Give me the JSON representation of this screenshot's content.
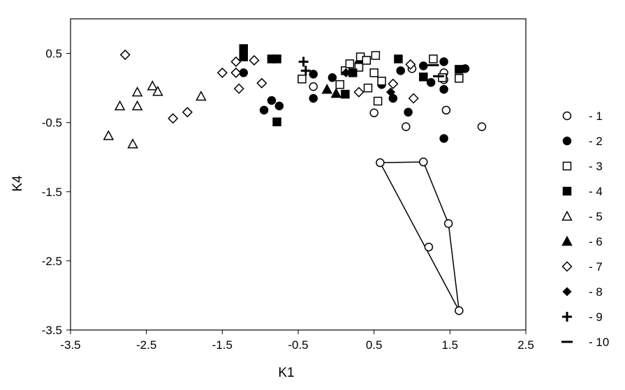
{
  "chart_data": {
    "type": "scatter",
    "title": "",
    "xlabel": "K1",
    "ylabel": "K4",
    "xlim": [
      -3.5,
      2.5
    ],
    "ylim": [
      -3.5,
      1.0
    ],
    "xticks": [
      -3.5,
      -2.5,
      -1.5,
      -0.5,
      0.5,
      1.5,
      2.5
    ],
    "xtick_labels": [
      "-3.5",
      "-2.5",
      "-1.5",
      "-0.5",
      "0.5",
      "1.5",
      "2.5"
    ],
    "yticks": [
      0.5,
      -0.5,
      -1.5,
      -2.5,
      -3.5
    ],
    "ytick_labels": [
      "0.5",
      "-0.5",
      "-1.5",
      "-2.5",
      "-3.5"
    ],
    "grid": false,
    "legend_position": "right",
    "series": [
      {
        "name": "- 1",
        "marker": "circle-open",
        "points": [
          [
            -0.3,
            0.02
          ],
          [
            0.5,
            -0.36
          ],
          [
            0.92,
            -0.56
          ],
          [
            1.0,
            0.28
          ],
          [
            1.42,
            0.22
          ],
          [
            1.42,
            0.12
          ],
          [
            1.45,
            -0.32
          ],
          [
            1.92,
            -0.56
          ],
          [
            0.58,
            -1.08
          ],
          [
            1.15,
            -1.07
          ],
          [
            1.48,
            -1.96
          ],
          [
            1.22,
            -2.3
          ],
          [
            1.62,
            -3.22
          ]
        ]
      },
      {
        "name": "- 2",
        "marker": "circle-filled",
        "points": [
          [
            -1.22,
            0.22
          ],
          [
            -0.95,
            -0.32
          ],
          [
            -0.85,
            -0.18
          ],
          [
            -0.75,
            -0.26
          ],
          [
            -0.3,
            0.2
          ],
          [
            -0.3,
            -0.15
          ],
          [
            -0.05,
            0.15
          ],
          [
            0.3,
            0.35
          ],
          [
            0.6,
            0.05
          ],
          [
            0.75,
            -0.15
          ],
          [
            0.85,
            0.25
          ],
          [
            0.95,
            -0.35
          ],
          [
            1.15,
            0.32
          ],
          [
            1.25,
            0.08
          ],
          [
            1.42,
            0.38
          ],
          [
            1.42,
            -0.02
          ],
          [
            1.42,
            -0.73
          ],
          [
            1.7,
            0.28
          ]
        ]
      },
      {
        "name": "- 3",
        "marker": "square-open",
        "points": [
          [
            -0.45,
            0.13
          ],
          [
            0.05,
            0.05
          ],
          [
            0.12,
            0.25
          ],
          [
            0.18,
            0.35
          ],
          [
            0.3,
            0.3
          ],
          [
            0.32,
            0.45
          ],
          [
            0.4,
            0.4
          ],
          [
            0.42,
            0.0
          ],
          [
            0.5,
            0.22
          ],
          [
            0.52,
            0.47
          ],
          [
            0.55,
            -0.19
          ],
          [
            0.6,
            0.1
          ],
          [
            1.28,
            0.42
          ],
          [
            1.4,
            0.15
          ],
          [
            1.62,
            0.14
          ]
        ]
      },
      {
        "name": "- 4",
        "marker": "square-filled",
        "points": [
          [
            -1.22,
            0.57
          ],
          [
            -1.22,
            0.45
          ],
          [
            -0.85,
            0.42
          ],
          [
            -0.78,
            0.42
          ],
          [
            -0.78,
            -0.49
          ],
          [
            0.12,
            -0.09
          ],
          [
            0.22,
            0.22
          ],
          [
            0.82,
            0.42
          ],
          [
            1.15,
            0.16
          ],
          [
            1.62,
            0.27
          ]
        ]
      },
      {
        "name": "- 5",
        "marker": "triangle-open",
        "points": [
          [
            -3.0,
            -0.69
          ],
          [
            -2.85,
            -0.26
          ],
          [
            -2.68,
            -0.81
          ],
          [
            -2.62,
            -0.06
          ],
          [
            -2.62,
            -0.26
          ],
          [
            -2.42,
            0.03
          ],
          [
            -2.35,
            -0.05
          ],
          [
            -1.78,
            -0.12
          ]
        ]
      },
      {
        "name": "- 6",
        "marker": "triangle-filled",
        "points": [
          [
            -0.12,
            -0.02
          ],
          [
            0.0,
            -0.08
          ]
        ]
      },
      {
        "name": "- 7",
        "marker": "diamond-open",
        "points": [
          [
            -2.78,
            0.48
          ],
          [
            -2.15,
            -0.44
          ],
          [
            -1.96,
            -0.35
          ],
          [
            -1.5,
            0.22
          ],
          [
            -1.32,
            0.22
          ],
          [
            -1.32,
            0.38
          ],
          [
            -1.28,
            -0.01
          ],
          [
            -1.08,
            0.4
          ],
          [
            -0.98,
            0.07
          ],
          [
            0.3,
            -0.06
          ],
          [
            0.75,
            0.06
          ],
          [
            0.98,
            0.34
          ],
          [
            1.02,
            -0.15
          ]
        ]
      },
      {
        "name": "- 8",
        "marker": "diamond-filled",
        "points": [
          [
            0.13,
            0.22
          ],
          [
            0.72,
            -0.06
          ]
        ]
      },
      {
        "name": "- 9",
        "marker": "plus",
        "points": [
          [
            -0.43,
            0.38
          ],
          [
            -0.4,
            0.25
          ]
        ]
      },
      {
        "name": "- 10",
        "marker": "minus",
        "points": [
          [
            1.28,
            0.33
          ],
          [
            1.35,
            0.17
          ]
        ]
      }
    ],
    "polygon": {
      "points": [
        [
          0.58,
          -1.08
        ],
        [
          1.15,
          -1.07
        ],
        [
          1.48,
          -1.96
        ],
        [
          1.62,
          -3.22
        ]
      ]
    }
  }
}
